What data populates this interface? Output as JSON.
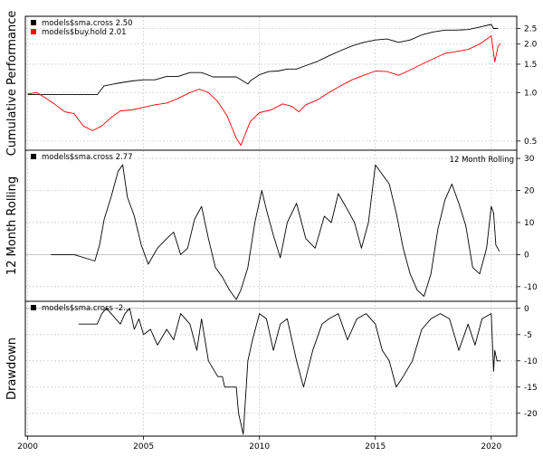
{
  "chart_data": [
    {
      "type": "line",
      "ylabel": "Cumulative Performance",
      "scale": "log",
      "ylim": [
        0.45,
        2.9
      ],
      "ticks": [
        0.5,
        1.0,
        1.5,
        2.0,
        2.5
      ],
      "tick_labels": [
        "0.5",
        "1.0",
        "1.5",
        "2.0",
        "2.5"
      ],
      "grid": true,
      "legend_position": "top-left",
      "series": [
        {
          "name": "models$sma.cross 2.50",
          "color": "#000000",
          "x": [
            2000.0,
            2001.0,
            2002.2,
            2002.5,
            2003.0,
            2003.3,
            2004.0,
            2004.5,
            2005.0,
            2005.5,
            2006.0,
            2006.5,
            2007.0,
            2007.5,
            2008.0,
            2008.5,
            2009.0,
            2009.5,
            2009.6,
            2010.0,
            2010.4,
            2010.8,
            2011.2,
            2011.6,
            2012.0,
            2012.5,
            2013.0,
            2013.5,
            2014.0,
            2014.5,
            2015.0,
            2015.5,
            2016.0,
            2016.5,
            2017.0,
            2017.5,
            2018.0,
            2018.5,
            2019.0,
            2019.5,
            2020.0,
            2020.1,
            2020.3
          ],
          "y": [
            0.97,
            0.97,
            0.97,
            0.97,
            0.97,
            1.1,
            1.15,
            1.18,
            1.2,
            1.2,
            1.26,
            1.26,
            1.33,
            1.33,
            1.25,
            1.25,
            1.25,
            1.13,
            1.18,
            1.29,
            1.35,
            1.36,
            1.4,
            1.4,
            1.47,
            1.56,
            1.69,
            1.82,
            1.95,
            2.05,
            2.12,
            2.15,
            2.05,
            2.12,
            2.28,
            2.38,
            2.44,
            2.44,
            2.46,
            2.55,
            2.65,
            2.5,
            2.5
          ]
        },
        {
          "name": "models$buy.hold 2.01",
          "color": "#ff0000",
          "x": [
            2000.0,
            2000.4,
            2000.8,
            2001.2,
            2001.6,
            2002.0,
            2002.4,
            2002.8,
            2003.2,
            2003.6,
            2004.0,
            2004.5,
            2005.0,
            2005.5,
            2006.0,
            2006.5,
            2007.0,
            2007.4,
            2007.8,
            2008.2,
            2008.6,
            2009.0,
            2009.2,
            2009.6,
            2010.0,
            2010.5,
            2011.0,
            2011.4,
            2011.7,
            2012.0,
            2012.5,
            2013.0,
            2013.5,
            2014.0,
            2014.5,
            2015.0,
            2015.5,
            2016.0,
            2016.5,
            2017.0,
            2017.5,
            2018.0,
            2018.5,
            2019.0,
            2019.5,
            2020.0,
            2020.15,
            2020.3,
            2020.4
          ],
          "y": [
            0.98,
            1.0,
            0.92,
            0.84,
            0.76,
            0.74,
            0.62,
            0.58,
            0.62,
            0.7,
            0.77,
            0.78,
            0.81,
            0.84,
            0.86,
            0.92,
            1.0,
            1.05,
            1.0,
            0.88,
            0.72,
            0.52,
            0.47,
            0.66,
            0.75,
            0.78,
            0.85,
            0.82,
            0.76,
            0.84,
            0.9,
            1.0,
            1.1,
            1.2,
            1.28,
            1.36,
            1.35,
            1.28,
            1.38,
            1.5,
            1.62,
            1.75,
            1.8,
            1.85,
            2.0,
            2.25,
            1.55,
            1.95,
            2.01
          ]
        }
      ]
    },
    {
      "type": "line",
      "ylabel": "12 Month Rolling",
      "ylim": [
        -14,
        32
      ],
      "ticks": [
        -10,
        0,
        10,
        20,
        30
      ],
      "tick_labels": [
        "-10",
        "0",
        "10",
        "20",
        "30"
      ],
      "grid": true,
      "legend_position": "top-left",
      "annotation": "12 Month Rolling",
      "series": [
        {
          "name": "models$sma.cross 2.77",
          "color": "#000000",
          "x": [
            2001.0,
            2002.0,
            2002.9,
            2003.1,
            2003.3,
            2003.6,
            2003.9,
            2004.1,
            2004.3,
            2004.6,
            2004.9,
            2005.2,
            2005.6,
            2006.0,
            2006.3,
            2006.6,
            2006.9,
            2007.2,
            2007.5,
            2007.8,
            2008.1,
            2008.4,
            2008.7,
            2009.0,
            2009.2,
            2009.5,
            2009.8,
            2010.1,
            2010.3,
            2010.6,
            2010.9,
            2011.2,
            2011.6,
            2012.0,
            2012.4,
            2012.8,
            2013.1,
            2013.4,
            2013.8,
            2014.1,
            2014.4,
            2014.7,
            2015.0,
            2015.3,
            2015.6,
            2015.9,
            2016.2,
            2016.5,
            2016.8,
            2017.1,
            2017.4,
            2017.7,
            2018.0,
            2018.3,
            2018.6,
            2018.9,
            2019.2,
            2019.5,
            2019.8,
            2020.0,
            2020.1,
            2020.2,
            2020.35
          ],
          "y": [
            0,
            0,
            -2,
            3,
            11,
            18,
            26,
            28,
            18,
            12,
            3,
            -3,
            2,
            5,
            7,
            0,
            2,
            11,
            15,
            5,
            -4,
            -7,
            -11,
            -14,
            -11,
            -4,
            10,
            20,
            14,
            6,
            -1,
            10,
            16,
            5,
            2,
            12,
            10,
            19,
            14,
            10,
            2,
            10,
            28,
            25,
            22,
            13,
            2,
            -6,
            -11,
            -13,
            -6,
            8,
            17,
            22,
            16,
            9,
            -4,
            -6,
            2,
            15,
            13,
            3,
            1
          ]
        }
      ]
    },
    {
      "type": "line",
      "ylabel": "Drawdown",
      "ylim": [
        -24,
        1
      ],
      "ticks": [
        -20,
        -15,
        -10,
        -5,
        0
      ],
      "tick_labels": [
        "-20",
        "-15",
        "-10",
        "-5",
        "0"
      ],
      "grid": true,
      "legend_position": "top-left",
      "series": [
        {
          "name": "models$sma.cross -2...",
          "color": "#000000",
          "x": [
            2002.2,
            2003.0,
            2003.2,
            2003.4,
            2003.6,
            2004.0,
            2004.2,
            2004.4,
            2004.6,
            2004.8,
            2005.0,
            2005.3,
            2005.6,
            2006.0,
            2006.3,
            2006.6,
            2007.0,
            2007.3,
            2007.5,
            2007.8,
            2008.2,
            2008.4,
            2008.5,
            2009.0,
            2009.1,
            2009.3,
            2009.5,
            2009.7,
            2010.0,
            2010.3,
            2010.6,
            2010.9,
            2011.2,
            2011.6,
            2011.9,
            2012.3,
            2012.7,
            2013.0,
            2013.4,
            2013.8,
            2014.2,
            2014.6,
            2015.0,
            2015.3,
            2015.6,
            2015.9,
            2016.2,
            2016.6,
            2017.0,
            2017.4,
            2017.8,
            2018.2,
            2018.6,
            2019.0,
            2019.3,
            2019.6,
            2020.0,
            2020.1,
            2020.15,
            2020.25,
            2020.4
          ],
          "y": [
            -3,
            -3,
            -1,
            0,
            -1,
            -3,
            -1,
            0,
            -4,
            -2,
            -5,
            -4,
            -7,
            -4,
            -6,
            -1,
            -3,
            -8,
            -2,
            -10,
            -13,
            -13,
            -15,
            -15,
            -20,
            -24,
            -10,
            -6,
            -1,
            -2,
            -8,
            -3,
            -2,
            -10,
            -15,
            -8,
            -3,
            -2,
            -1,
            -6,
            -2,
            -1,
            -3,
            -8,
            -10,
            -15,
            -13,
            -10,
            -4,
            -2,
            -1,
            -2,
            -8,
            -3,
            -7,
            -2,
            -1,
            -12,
            -8,
            -10,
            -10
          ]
        }
      ]
    }
  ],
  "x_axis": {
    "ticks": [
      2000,
      2005,
      2010,
      2015,
      2020
    ],
    "tick_labels": [
      "2000",
      "2005",
      "2010",
      "2015",
      "2020"
    ],
    "xlim": [
      1999.9,
      2021.1
    ]
  }
}
